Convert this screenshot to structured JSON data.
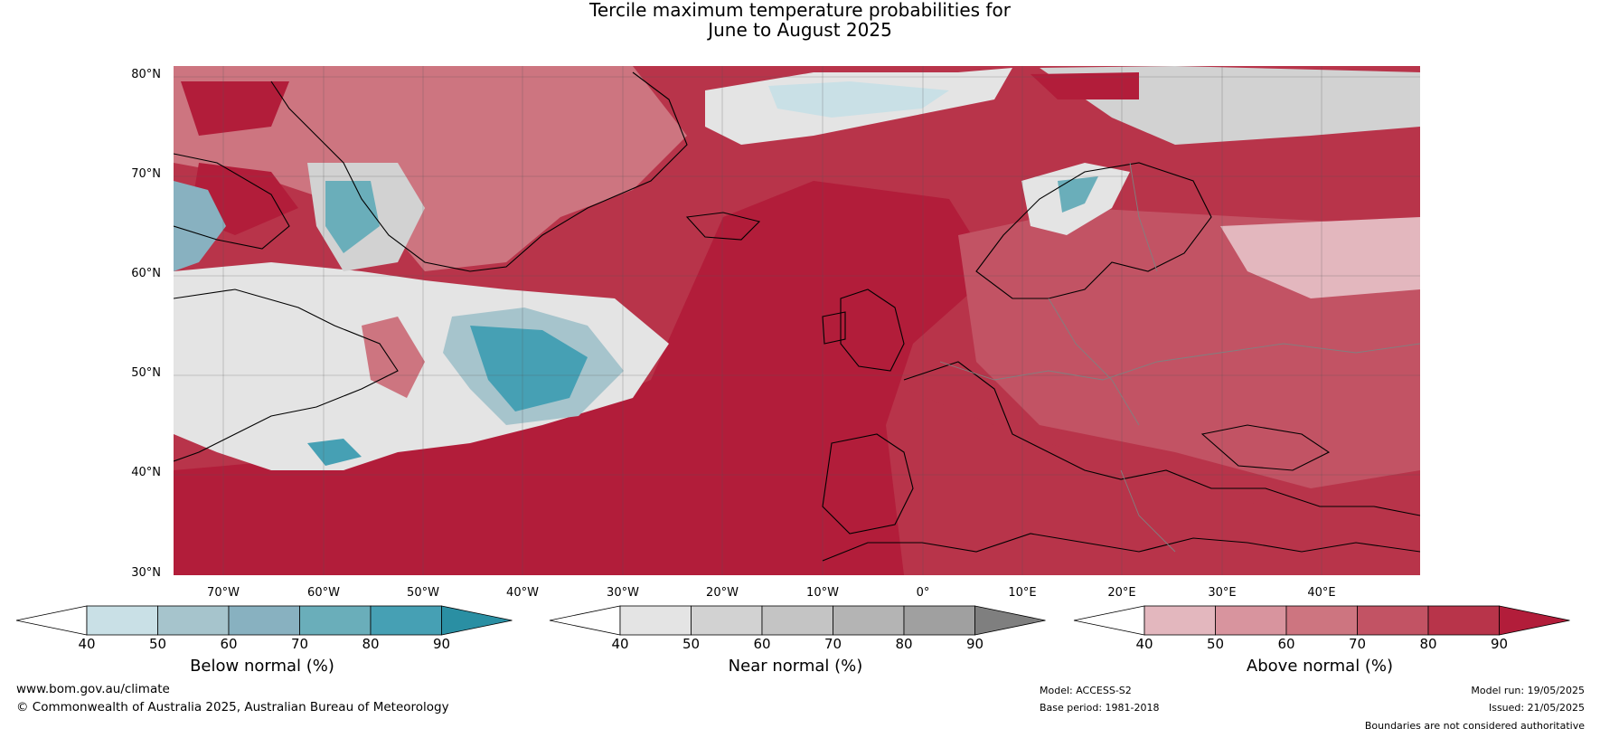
{
  "title": {
    "line1": "Tercile maximum temperature probabilities for",
    "line2": "June to August 2025"
  },
  "map": {
    "latitude_labels": [
      "80°N",
      "70°N",
      "60°N",
      "50°N",
      "40°N",
      "30°N"
    ],
    "longitude_labels": [
      "70°W",
      "60°W",
      "50°W",
      "40°W",
      "30°W",
      "20°W",
      "10°W",
      "0°",
      "10°E",
      "20°E",
      "30°E",
      "40°E"
    ]
  },
  "legends": [
    {
      "name": "Below normal (%)",
      "ticks": [
        "40",
        "50",
        "60",
        "70",
        "80",
        "90"
      ],
      "colors": [
        "#ffffff",
        "#c9e0e6",
        "#a6c4cc",
        "#88b1c0",
        "#6aaeba",
        "#46a0b4",
        "#2a8fa3"
      ]
    },
    {
      "name": "Near normal (%)",
      "ticks": [
        "40",
        "50",
        "60",
        "70",
        "80",
        "90"
      ],
      "colors": [
        "#ffffff",
        "#e4e4e4",
        "#d2d2d2",
        "#c4c4c4",
        "#b4b4b4",
        "#a0a0a0",
        "#7f7f7f"
      ]
    },
    {
      "name": "Above normal (%)",
      "ticks": [
        "40",
        "50",
        "60",
        "70",
        "80",
        "90"
      ],
      "colors": [
        "#ffffff",
        "#e3b7be",
        "#d8949e",
        "#cd7580",
        "#c25364",
        "#b8344a",
        "#b21d3a"
      ]
    }
  ],
  "footer": {
    "website": "www.bom.gov.au/climate",
    "copyright": "© Commonwealth of Australia 2025, Australian Bureau of Meteorology",
    "model": "Model: ACCESS-S2",
    "base_period": "Base period: 1981-2018",
    "model_run": "Model run: 19/05/2025",
    "issued": "Issued: 21/05/2025",
    "disclaimer": "Boundaries are not considered authoritative"
  }
}
